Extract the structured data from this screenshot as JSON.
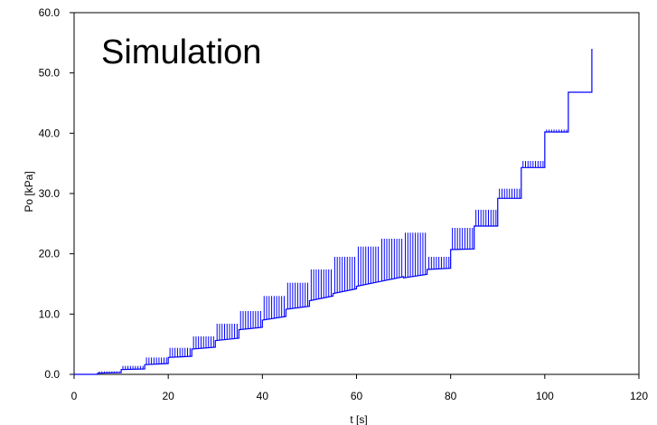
{
  "chart_data": {
    "type": "line",
    "title": "Simulation",
    "xlabel": "t [s]",
    "ylabel": "Po [kPa]",
    "xlim": [
      0,
      120
    ],
    "ylim": [
      0,
      60
    ],
    "x_ticks": [
      "0",
      "20",
      "40",
      "60",
      "80",
      "100",
      "120"
    ],
    "y_ticks": [
      "0.0",
      "10.0",
      "20.0",
      "30.0",
      "40.0",
      "50.0",
      "60.0"
    ],
    "grid": false,
    "legend": "none",
    "series_color": "#0000ff",
    "series": [
      {
        "baseline_points": [
          {
            "t": 0,
            "p": 0
          },
          {
            "t": 5,
            "p": 0
          },
          {
            "t": 5,
            "p": 0.2
          },
          {
            "t": 10,
            "p": 0.3
          },
          {
            "t": 10,
            "p": 0.8
          },
          {
            "t": 15,
            "p": 0.9
          },
          {
            "t": 15,
            "p": 1.6
          },
          {
            "t": 20,
            "p": 1.8
          },
          {
            "t": 20,
            "p": 2.8
          },
          {
            "t": 25,
            "p": 3.0
          },
          {
            "t": 25,
            "p": 4.2
          },
          {
            "t": 30,
            "p": 4.5
          },
          {
            "t": 30,
            "p": 5.6
          },
          {
            "t": 35,
            "p": 6.0
          },
          {
            "t": 35,
            "p": 7.4
          },
          {
            "t": 40,
            "p": 7.8
          },
          {
            "t": 40,
            "p": 9.0
          },
          {
            "t": 45,
            "p": 9.6
          },
          {
            "t": 45,
            "p": 10.8
          },
          {
            "t": 50,
            "p": 11.3
          },
          {
            "t": 50,
            "p": 12.2
          },
          {
            "t": 55,
            "p": 13.0
          },
          {
            "t": 55,
            "p": 13.4
          },
          {
            "t": 60,
            "p": 14.2
          },
          {
            "t": 60,
            "p": 14.6
          },
          {
            "t": 65,
            "p": 15.4
          },
          {
            "t": 65,
            "p": 15.4
          },
          {
            "t": 70,
            "p": 16.2
          },
          {
            "t": 70,
            "p": 16.0
          },
          {
            "t": 75,
            "p": 16.6
          },
          {
            "t": 75,
            "p": 17.4
          },
          {
            "t": 80,
            "p": 17.6
          },
          {
            "t": 80,
            "p": 20.7
          },
          {
            "t": 85,
            "p": 20.8
          },
          {
            "t": 85,
            "p": 24.6
          },
          {
            "t": 90,
            "p": 24.6
          },
          {
            "t": 90,
            "p": 29.2
          },
          {
            "t": 95,
            "p": 29.2
          },
          {
            "t": 95,
            "p": 34.3
          },
          {
            "t": 100,
            "p": 34.3
          },
          {
            "t": 100,
            "p": 40.2
          },
          {
            "t": 105,
            "p": 40.2
          },
          {
            "t": 105,
            "p": 46.8
          },
          {
            "t": 110,
            "p": 46.8
          },
          {
            "t": 110,
            "p": 54.0
          }
        ],
        "spike_segments": [
          {
            "t_start": 5,
            "t_end": 10,
            "peak": 0.5
          },
          {
            "t_start": 10,
            "t_end": 15,
            "peak": 1.4
          },
          {
            "t_start": 15,
            "t_end": 20,
            "peak": 2.8
          },
          {
            "t_start": 20,
            "t_end": 25,
            "peak": 4.4
          },
          {
            "t_start": 25,
            "t_end": 30,
            "peak": 6.3
          },
          {
            "t_start": 30,
            "t_end": 35,
            "peak": 8.4
          },
          {
            "t_start": 35,
            "t_end": 40,
            "peak": 10.5
          },
          {
            "t_start": 40,
            "t_end": 45,
            "peak": 13.0
          },
          {
            "t_start": 45,
            "t_end": 50,
            "peak": 15.2
          },
          {
            "t_start": 50,
            "t_end": 55,
            "peak": 17.4
          },
          {
            "t_start": 55,
            "t_end": 60,
            "peak": 19.5
          },
          {
            "t_start": 60,
            "t_end": 65,
            "peak": 21.2
          },
          {
            "t_start": 65,
            "t_end": 70,
            "peak": 22.5
          },
          {
            "t_start": 70,
            "t_end": 75,
            "peak": 23.5
          },
          {
            "t_start": 75,
            "t_end": 80,
            "peak": 19.5
          },
          {
            "t_start": 80,
            "t_end": 85,
            "peak": 24.3
          },
          {
            "t_start": 85,
            "t_end": 90,
            "peak": 27.3
          },
          {
            "t_start": 90,
            "t_end": 95,
            "peak": 30.8
          },
          {
            "t_start": 95,
            "t_end": 100,
            "peak": 35.4
          },
          {
            "t_start": 100,
            "t_end": 105,
            "peak": 40.6
          }
        ]
      }
    ]
  }
}
